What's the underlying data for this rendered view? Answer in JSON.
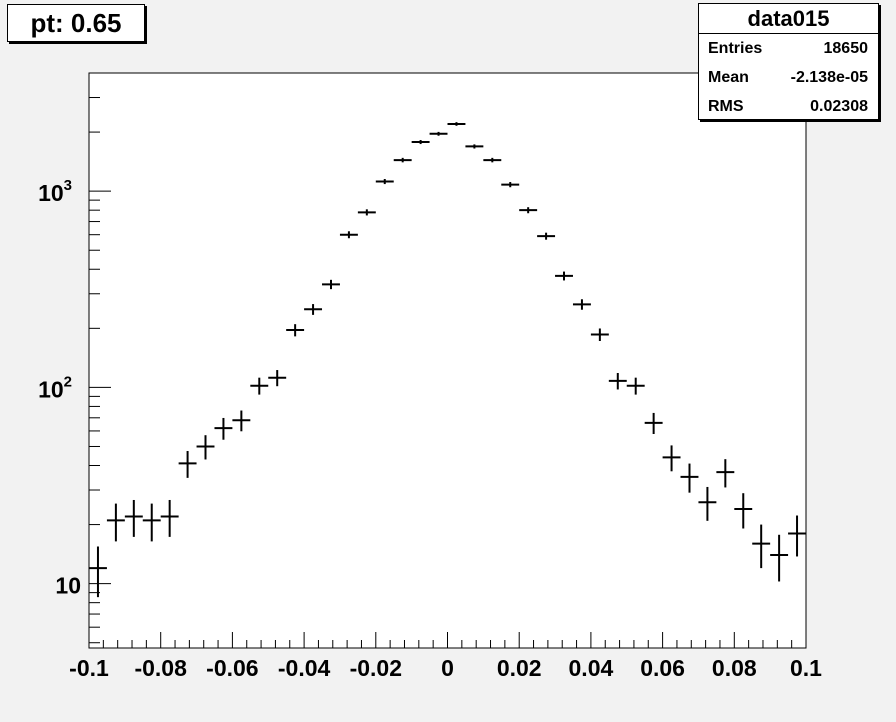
{
  "title_box": {
    "text": "pt: 0.65"
  },
  "stats": {
    "name": "data015",
    "rows": [
      {
        "label": "Entries",
        "value": "18650"
      },
      {
        "label": "Mean",
        "value": "-2.138e-05"
      },
      {
        "label": "RMS",
        "value": "0.02308"
      }
    ]
  },
  "chart_data": {
    "type": "scatter",
    "title": "",
    "xlabel": "",
    "ylabel": "",
    "y_scale": "log",
    "xlim": [
      -0.1,
      0.1
    ],
    "ylim": [
      4.7,
      4000
    ],
    "xticks": [
      "-0.1",
      "-0.08",
      "-0.06",
      "-0.04",
      "-0.02",
      "0",
      "0.02",
      "0.04",
      "0.06",
      "0.08",
      "0.1"
    ],
    "xtick_values": [
      -0.1,
      -0.08,
      -0.06,
      -0.04,
      -0.02,
      0,
      0.02,
      0.04,
      0.06,
      0.08,
      0.1
    ],
    "yticks": [
      {
        "value": 10,
        "base": "10",
        "exp": ""
      },
      {
        "value": 100,
        "base": "10",
        "exp": "2"
      },
      {
        "value": 1000,
        "base": "10",
        "exp": "3"
      }
    ],
    "bin_width": 0.005,
    "x": [
      -0.0975,
      -0.0925,
      -0.0875,
      -0.0825,
      -0.0775,
      -0.0725,
      -0.0675,
      -0.0625,
      -0.0575,
      -0.0525,
      -0.0475,
      -0.0425,
      -0.0375,
      -0.0325,
      -0.0275,
      -0.0225,
      -0.0175,
      -0.0125,
      -0.0075,
      -0.0025,
      0.0025,
      0.0075,
      0.0125,
      0.0175,
      0.0225,
      0.0275,
      0.0325,
      0.0375,
      0.0425,
      0.0475,
      0.0525,
      0.0575,
      0.0625,
      0.0675,
      0.0725,
      0.0775,
      0.0825,
      0.0875,
      0.0925,
      0.0975
    ],
    "y": [
      12,
      21,
      22,
      21,
      22,
      41,
      50,
      62,
      68,
      102,
      112,
      196,
      250,
      335,
      600,
      780,
      1120,
      1440,
      1780,
      1960,
      2200,
      1690,
      1440,
      1080,
      800,
      590,
      370,
      265,
      186,
      108,
      102,
      66,
      44,
      35,
      26,
      37,
      24,
      16,
      14,
      18
    ],
    "grid": false,
    "colors": {
      "marker": "#000000",
      "frame": "#000000",
      "pad": "#ffffff"
    }
  }
}
